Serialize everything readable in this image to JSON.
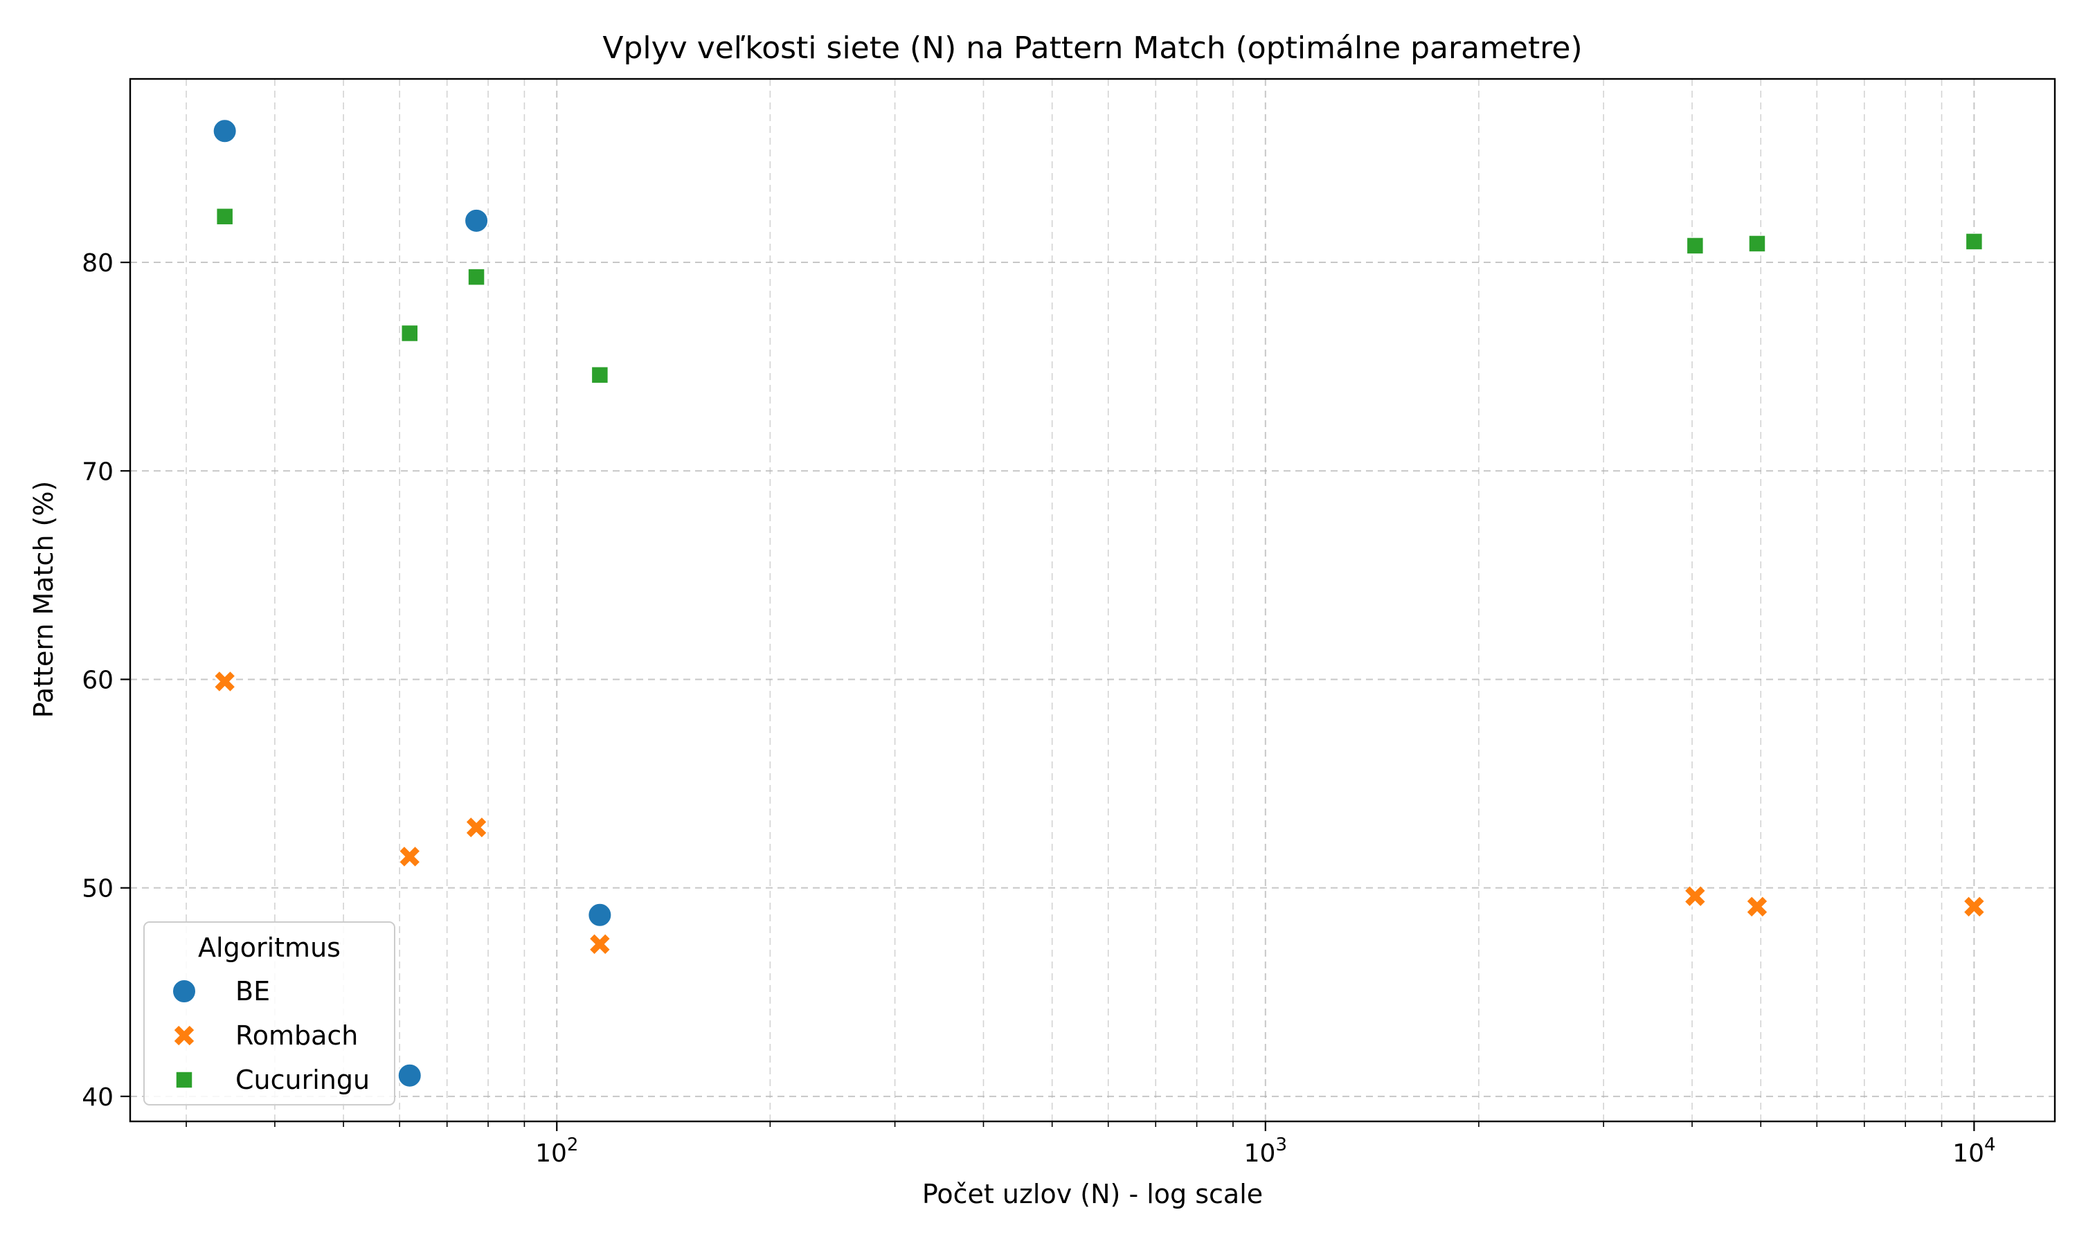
{
  "chart_data": {
    "type": "scatter",
    "title": "Vplyv veľkosti siete (N) na Pattern Match (optimálne parametre)",
    "xlabel": "Počet uzlov (N) - log scale",
    "ylabel": "Pattern Match (%)",
    "xscale": "log",
    "xlim": [
      25,
      13000
    ],
    "ylim": [
      38.8,
      88.8
    ],
    "x_ticks": [
      100,
      1000,
      10000
    ],
    "x_tick_labels": [
      {
        "base": "10",
        "exp": "2"
      },
      {
        "base": "10",
        "exp": "3"
      },
      {
        "base": "10",
        "exp": "4"
      }
    ],
    "y_ticks": [
      40,
      50,
      60,
      70,
      80
    ],
    "y_tick_labels": [
      "40",
      "50",
      "60",
      "70",
      "80"
    ],
    "grid": true,
    "legend": {
      "title": "Algoritmus",
      "placement": "lower-left"
    },
    "series": [
      {
        "name": "BE",
        "marker": "circle",
        "color": "#1f77b4",
        "points": [
          {
            "x": 34,
            "y": 86.3
          },
          {
            "x": 62,
            "y": 41.0
          },
          {
            "x": 77,
            "y": 82.0
          },
          {
            "x": 115,
            "y": 48.7
          }
        ]
      },
      {
        "name": "Rombach",
        "marker": "x",
        "color": "#ff7f0e",
        "points": [
          {
            "x": 34,
            "y": 59.9
          },
          {
            "x": 62,
            "y": 51.5
          },
          {
            "x": 77,
            "y": 52.9
          },
          {
            "x": 115,
            "y": 47.3
          },
          {
            "x": 4039,
            "y": 49.6
          },
          {
            "x": 4941,
            "y": 49.1
          },
          {
            "x": 10000,
            "y": 49.1
          }
        ]
      },
      {
        "name": "Cucuringu",
        "marker": "square",
        "color": "#2ca02c",
        "points": [
          {
            "x": 34,
            "y": 82.2
          },
          {
            "x": 62,
            "y": 76.6
          },
          {
            "x": 77,
            "y": 79.3
          },
          {
            "x": 115,
            "y": 74.6
          },
          {
            "x": 4039,
            "y": 80.8
          },
          {
            "x": 4941,
            "y": 80.9
          },
          {
            "x": 10000,
            "y": 81.0
          }
        ]
      }
    ]
  }
}
